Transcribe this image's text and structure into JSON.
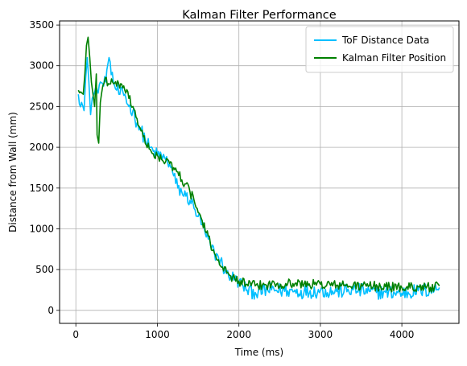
{
  "chart_data": {
    "type": "line",
    "title": "Kalman Filter Performance",
    "xlabel": "Time (ms)",
    "ylabel": "Distance from Wall (mm)",
    "xlim": [
      -200,
      4700
    ],
    "ylim": [
      -160,
      3550
    ],
    "xticks": [
      0,
      1000,
      2000,
      3000,
      4000
    ],
    "yticks": [
      0,
      500,
      1000,
      1500,
      2000,
      2500,
      3000,
      3500
    ],
    "grid": true,
    "legend_position": "top-right",
    "series": [
      {
        "name": "ToF Distance Data",
        "color": "#00bfff",
        "anchors": [
          [
            30,
            2650
          ],
          [
            70,
            2550
          ],
          [
            100,
            2450
          ],
          [
            120,
            2850
          ],
          [
            140,
            3100
          ],
          [
            160,
            2800
          ],
          [
            180,
            2400
          ],
          [
            200,
            2600
          ],
          [
            220,
            2650
          ],
          [
            260,
            2700
          ],
          [
            300,
            2800
          ],
          [
            340,
            2750
          ],
          [
            380,
            2950
          ],
          [
            420,
            3050
          ],
          [
            460,
            2800
          ],
          [
            500,
            2700
          ],
          [
            540,
            2650
          ],
          [
            600,
            2650
          ],
          [
            650,
            2500
          ],
          [
            700,
            2450
          ],
          [
            750,
            2300
          ],
          [
            800,
            2200
          ],
          [
            850,
            2100
          ],
          [
            900,
            2000
          ],
          [
            950,
            1950
          ],
          [
            1000,
            1900
          ],
          [
            1050,
            1900
          ],
          [
            1100,
            1850
          ],
          [
            1150,
            1800
          ],
          [
            1200,
            1650
          ],
          [
            1250,
            1500
          ],
          [
            1300,
            1450
          ],
          [
            1350,
            1400
          ],
          [
            1400,
            1350
          ],
          [
            1450,
            1250
          ],
          [
            1500,
            1150
          ],
          [
            1550,
            1050
          ],
          [
            1600,
            900
          ],
          [
            1650,
            800
          ],
          [
            1700,
            700
          ],
          [
            1750,
            650
          ],
          [
            1800,
            550
          ],
          [
            1850,
            450
          ],
          [
            1900,
            420
          ],
          [
            1950,
            380
          ],
          [
            2000,
            350
          ],
          [
            2050,
            300
          ],
          [
            2100,
            250
          ],
          [
            2200,
            220
          ],
          [
            2400,
            250
          ],
          [
            2600,
            240
          ],
          [
            2800,
            230
          ],
          [
            3000,
            240
          ],
          [
            3200,
            230
          ],
          [
            3400,
            250
          ],
          [
            3600,
            230
          ],
          [
            3800,
            220
          ],
          [
            4000,
            210
          ],
          [
            4200,
            240
          ],
          [
            4400,
            250
          ],
          [
            4460,
            280
          ]
        ],
        "noise": 90,
        "step": 12
      },
      {
        "name": "Kalman Filter Position",
        "color": "#008000",
        "anchors": [
          [
            30,
            2700
          ],
          [
            60,
            2680
          ],
          [
            90,
            2650
          ],
          [
            110,
            2900
          ],
          [
            130,
            3250
          ],
          [
            150,
            3350
          ],
          [
            170,
            3100
          ],
          [
            190,
            2800
          ],
          [
            210,
            2650
          ],
          [
            230,
            2500
          ],
          [
            250,
            2900
          ],
          [
            260,
            2150
          ],
          [
            280,
            2050
          ],
          [
            300,
            2550
          ],
          [
            330,
            2750
          ],
          [
            360,
            2850
          ],
          [
            400,
            2780
          ],
          [
            450,
            2800
          ],
          [
            500,
            2750
          ],
          [
            550,
            2780
          ],
          [
            600,
            2700
          ],
          [
            650,
            2600
          ],
          [
            700,
            2500
          ],
          [
            750,
            2350
          ],
          [
            800,
            2200
          ],
          [
            850,
            2050
          ],
          [
            900,
            1980
          ],
          [
            950,
            1920
          ],
          [
            1000,
            1900
          ],
          [
            1050,
            1850
          ],
          [
            1100,
            1820
          ],
          [
            1150,
            1800
          ],
          [
            1200,
            1750
          ],
          [
            1250,
            1700
          ],
          [
            1300,
            1600
          ],
          [
            1350,
            1550
          ],
          [
            1400,
            1450
          ],
          [
            1450,
            1350
          ],
          [
            1500,
            1200
          ],
          [
            1550,
            1100
          ],
          [
            1600,
            950
          ],
          [
            1650,
            820
          ],
          [
            1700,
            700
          ],
          [
            1750,
            620
          ],
          [
            1800,
            530
          ],
          [
            1850,
            460
          ],
          [
            1900,
            420
          ],
          [
            1950,
            390
          ],
          [
            2000,
            360
          ],
          [
            2100,
            320
          ],
          [
            2200,
            300
          ],
          [
            2400,
            320
          ],
          [
            2600,
            330
          ],
          [
            2800,
            320
          ],
          [
            3000,
            320
          ],
          [
            3200,
            310
          ],
          [
            3400,
            300
          ],
          [
            3600,
            300
          ],
          [
            3800,
            290
          ],
          [
            4000,
            280
          ],
          [
            4200,
            290
          ],
          [
            4400,
            280
          ],
          [
            4460,
            300
          ]
        ],
        "noise": 60,
        "step": 12
      }
    ]
  }
}
